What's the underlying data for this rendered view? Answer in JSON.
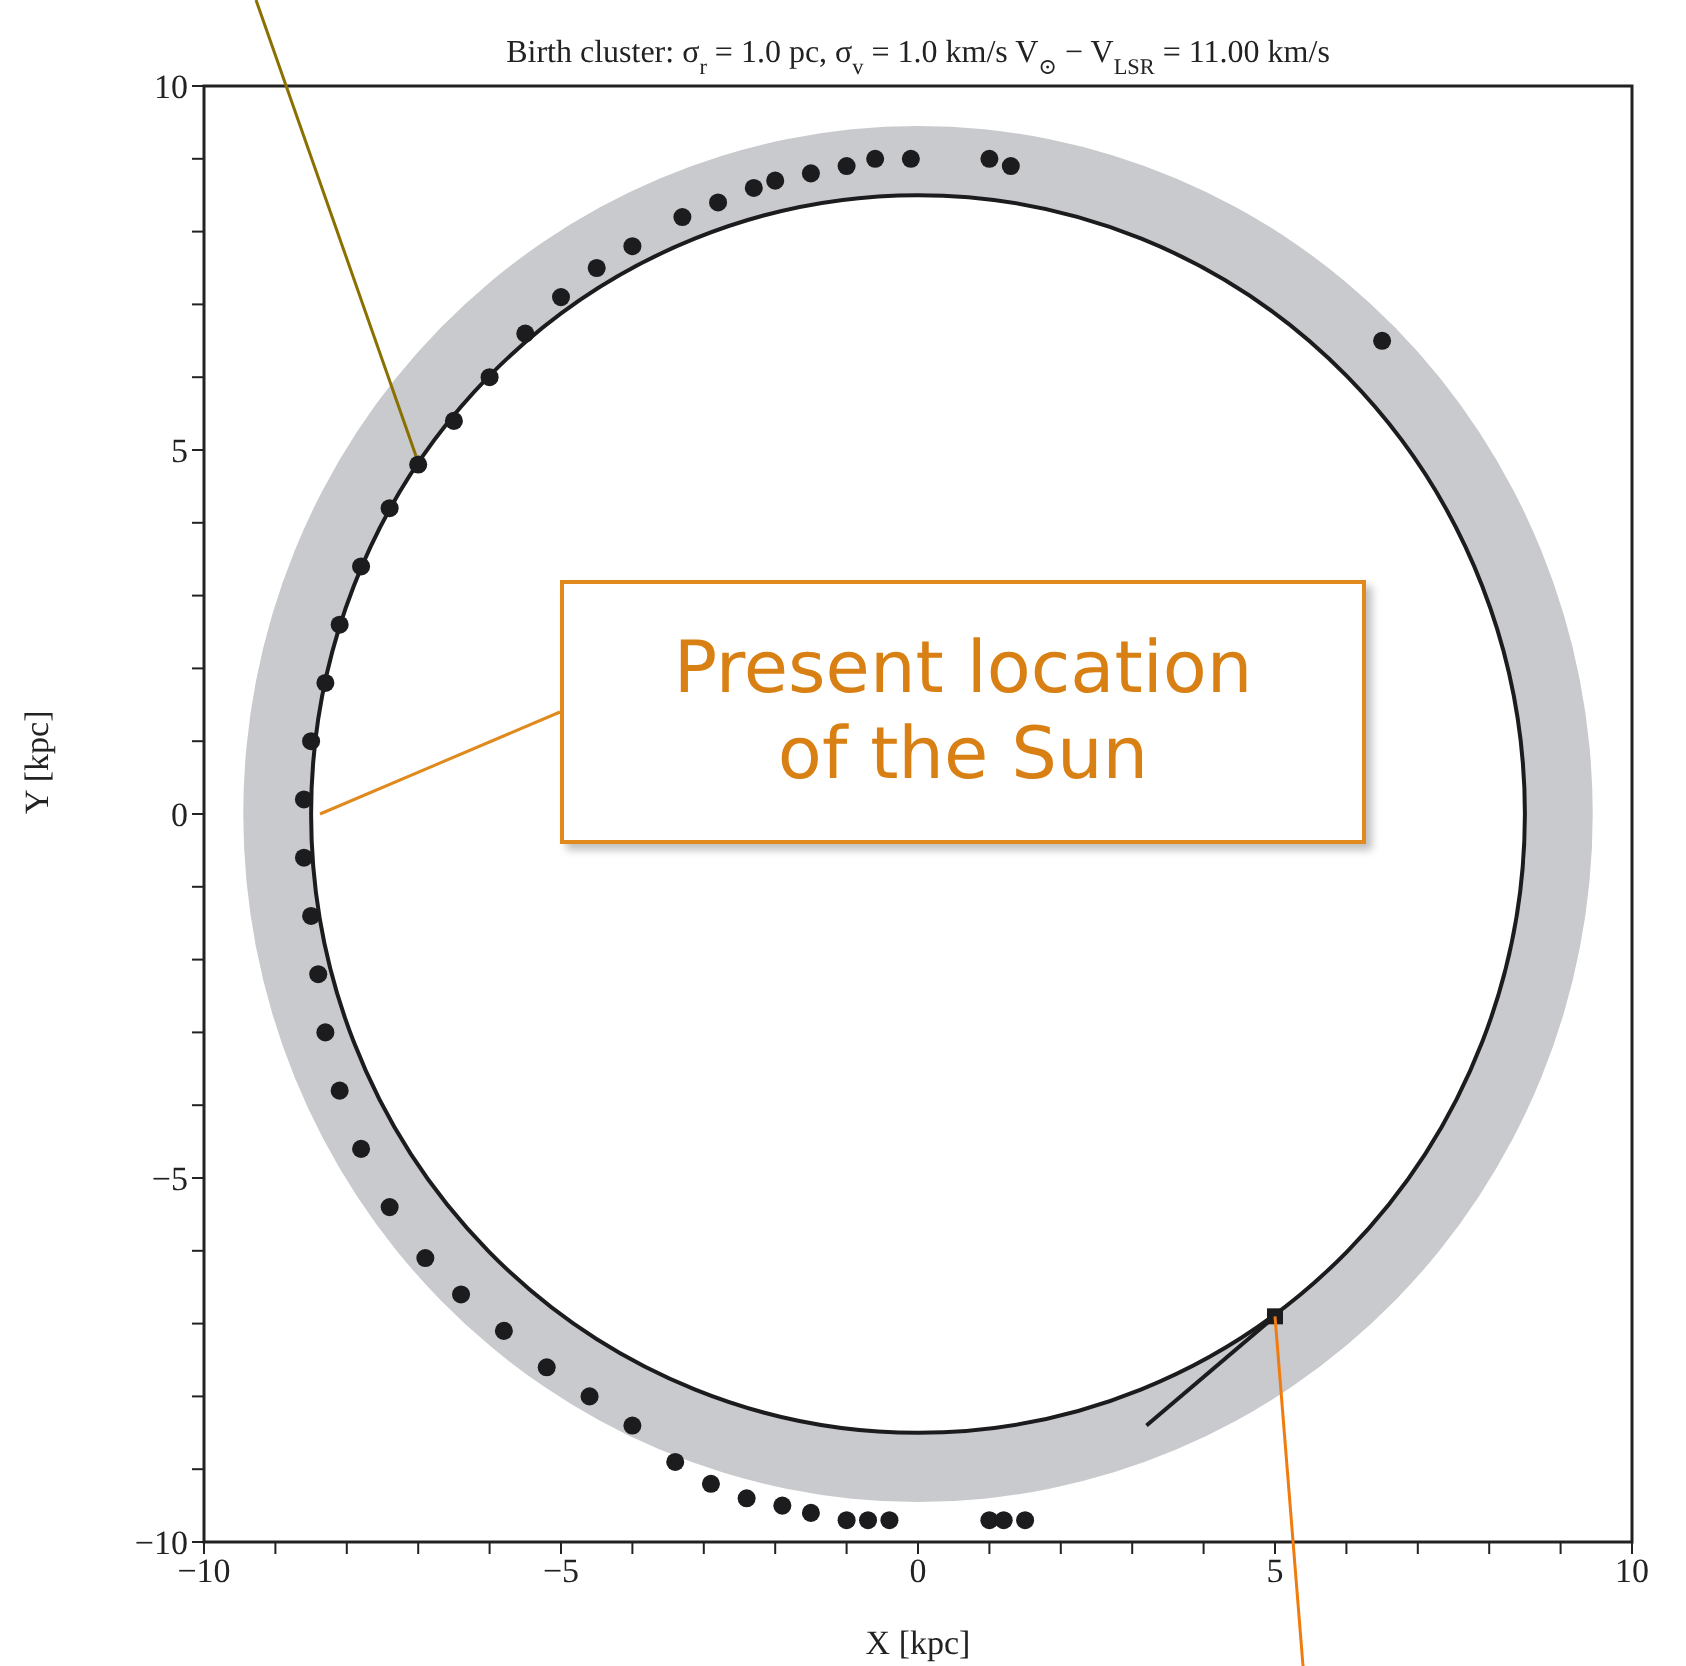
{
  "chart_data": {
    "type": "scatter",
    "title": "Birth cluster: σ$_{r}$ = 1.0 pc, σ$_{v}$ = 1.0 km/s V$_{⊙}$ − V$_{LSR}$ = 11.00 km/s",
    "xlabel": "X [kpc]",
    "ylabel": "Y [kpc]",
    "xlim": [
      -10,
      10
    ],
    "ylim": [
      -10,
      10
    ],
    "xticks": [
      {
        "value": -10,
        "label": "−10"
      },
      {
        "value": -9,
        "label": null
      },
      {
        "value": -8,
        "label": null
      },
      {
        "value": -7,
        "label": null
      },
      {
        "value": -6,
        "label": null
      },
      {
        "value": -5,
        "label": "−5"
      },
      {
        "value": -4,
        "label": null
      },
      {
        "value": -3,
        "label": null
      },
      {
        "value": -2,
        "label": null
      },
      {
        "value": -1,
        "label": null
      },
      0,
      {
        "value": 1,
        "label": null
      },
      {
        "value": 2,
        "label": null
      },
      {
        "value": 3,
        "label": null
      },
      {
        "value": 4,
        "label": null
      },
      5,
      {
        "value": 6,
        "label": null
      },
      {
        "value": 7,
        "label": null
      },
      {
        "value": 8,
        "label": null
      },
      {
        "value": 9,
        "label": null
      },
      10
    ],
    "yticks": [
      {
        "value": -10,
        "label": "−10"
      },
      {
        "value": -9,
        "label": null
      },
      {
        "value": -8,
        "label": null
      },
      {
        "value": -7,
        "label": null
      },
      {
        "value": -6,
        "label": null
      },
      {
        "value": -5,
        "label": "−5"
      },
      {
        "value": -4,
        "label": null
      },
      {
        "value": -3,
        "label": null
      },
      {
        "value": -2,
        "label": null
      },
      {
        "value": -1,
        "label": null
      },
      0,
      {
        "value": 1,
        "label": null
      },
      {
        "value": 2,
        "label": null
      },
      {
        "value": 3,
        "label": null
      },
      {
        "value": 4,
        "label": null
      },
      5,
      {
        "value": 6,
        "label": null
      },
      {
        "value": 7,
        "label": null
      },
      {
        "value": 8,
        "label": null
      },
      {
        "value": 9,
        "label": null
      },
      10
    ],
    "annotations": [
      "Present location of the Sun"
    ],
    "series": [
      {
        "type": "line",
        "color": "#1c1c1e",
        "marker": "none",
        "line_style": "solid",
        "x": [
          3.2,
          5.0
        ],
        "values": [
          -8.4,
          -6.9
        ]
      },
      {
        "color": "#1c1c1e",
        "marker": "circle",
        "x": [
          1.3,
          1.0,
          -0.1,
          -0.6,
          -1.0,
          -1.5,
          -2.0,
          -2.3,
          -2.8,
          -3.3,
          -4.0,
          -4.5,
          -5.0,
          -5.5,
          -6.0,
          -6.5,
          -7.0,
          -7.4,
          -7.8,
          -8.1,
          -8.3,
          -8.5,
          -8.6,
          -8.6,
          -8.5,
          -8.4,
          -8.3,
          -8.1,
          -7.8,
          -7.4,
          -6.9,
          -6.4,
          -5.8,
          -5.2,
          -4.6,
          -4.0,
          -3.4,
          -2.9,
          -2.4,
          -1.9,
          -1.5,
          -1.0,
          -0.7,
          -0.4,
          1.0,
          1.2,
          1.5,
          6.5
        ],
        "values": [
          8.9,
          9.0,
          9.0,
          9.0,
          8.9,
          8.8,
          8.7,
          8.6,
          8.4,
          8.2,
          7.8,
          7.5,
          7.1,
          6.6,
          6.0,
          5.4,
          4.8,
          4.2,
          3.4,
          2.6,
          1.8,
          1.0,
          0.2,
          -0.6,
          -1.4,
          -2.2,
          -3.0,
          -3.8,
          -4.6,
          -5.4,
          -6.1,
          -6.6,
          -7.1,
          -7.6,
          -8.0,
          -8.4,
          -8.9,
          -9.2,
          -9.4,
          -9.5,
          -9.6,
          -9.7,
          -9.7,
          -9.7,
          -9.7,
          -9.7,
          -9.7,
          6.5
        ]
      },
      {
        "color": "#1c1c1e",
        "marker": "square",
        "x": [
          5.0
        ],
        "values": [
          -6.9
        ]
      }
    ]
  }
}
